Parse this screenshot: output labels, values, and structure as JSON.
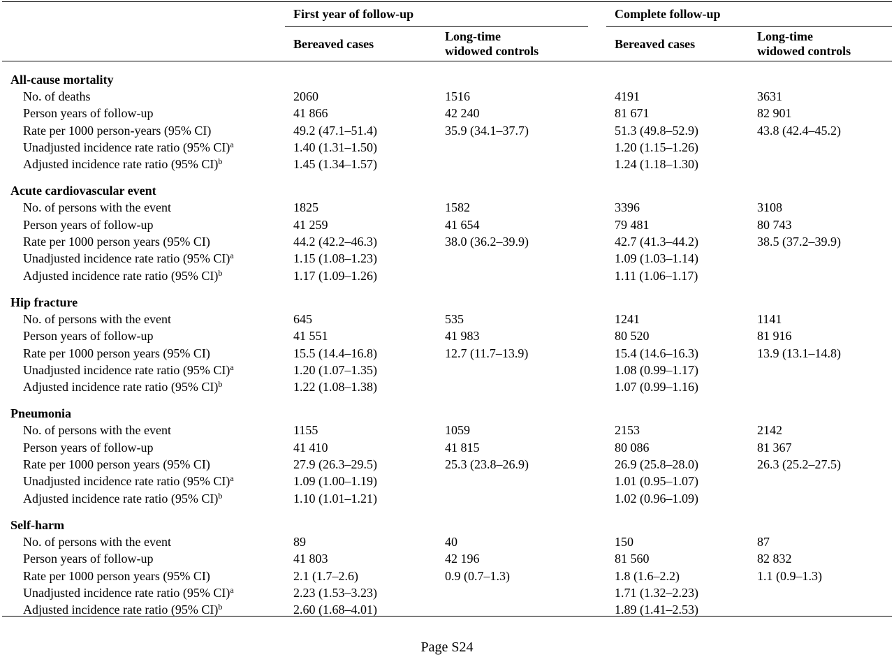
{
  "header": {
    "group_first_year": "First year of follow-up",
    "group_complete": "Complete follow-up",
    "col_bereaved": "Bereaved cases",
    "col_controls_line1": "Long-time",
    "col_controls_line2": "widowed controls"
  },
  "sections": [
    {
      "title": "All-cause mortality",
      "rows": [
        {
          "label": "No. of deaths",
          "sup": "",
          "values": [
            "2060",
            "1516",
            "4191",
            "3631"
          ]
        },
        {
          "label": "Person years of follow-up",
          "sup": "",
          "values": [
            "41 866",
            "42 240",
            "81 671",
            "82 901"
          ]
        },
        {
          "label": "Rate per 1000 person-years (95% CI)",
          "sup": "",
          "values": [
            "49.2 (47.1–51.4)",
            "35.9 (34.1–37.7)",
            "51.3 (49.8–52.9)",
            "43.8 (42.4–45.2)"
          ]
        },
        {
          "label": "Unadjusted incidence rate ratio (95% CI)",
          "sup": "a",
          "values": [
            "1.40 (1.31–1.50)",
            "",
            "1.20 (1.15–1.26)",
            ""
          ]
        },
        {
          "label": "Adjusted incidence rate ratio (95% CI)",
          "sup": "b",
          "values": [
            "1.45 (1.34–1.57)",
            "",
            "1.24 (1.18–1.30)",
            ""
          ]
        }
      ]
    },
    {
      "title": "Acute cardiovascular event",
      "rows": [
        {
          "label": "No. of persons with the event",
          "sup": "",
          "values": [
            "1825",
            "1582",
            "3396",
            "3108"
          ]
        },
        {
          "label": "Person years of follow-up",
          "sup": "",
          "values": [
            "41 259",
            "41 654",
            "79 481",
            "80 743"
          ]
        },
        {
          "label": "Rate per 1000 person years (95% CI)",
          "sup": "",
          "values": [
            "44.2 (42.2–46.3)",
            "38.0 (36.2–39.9)",
            "42.7 (41.3–44.2)",
            "38.5 (37.2–39.9)"
          ]
        },
        {
          "label": "Unadjusted incidence rate ratio (95% CI)",
          "sup": "a",
          "values": [
            "1.15 (1.08–1.23)",
            "",
            "1.09 (1.03–1.14)",
            ""
          ]
        },
        {
          "label": "Adjusted incidence rate ratio (95% CI)",
          "sup": "b",
          "values": [
            "1.17 (1.09–1.26)",
            "",
            "1.11 (1.06–1.17)",
            ""
          ]
        }
      ]
    },
    {
      "title": "Hip fracture",
      "rows": [
        {
          "label": "No. of persons with the event",
          "sup": "",
          "values": [
            "645",
            "535",
            "1241",
            "1141"
          ]
        },
        {
          "label": "Person years of follow-up",
          "sup": "",
          "values": [
            "41 551",
            "41 983",
            "80 520",
            "81 916"
          ]
        },
        {
          "label": "Rate per 1000 person years (95% CI)",
          "sup": "",
          "values": [
            "15.5 (14.4–16.8)",
            "12.7 (11.7–13.9)",
            "15.4 (14.6–16.3)",
            "13.9 (13.1–14.8)"
          ]
        },
        {
          "label": "Unadjusted incidence rate ratio (95% CI)",
          "sup": "a",
          "values": [
            "1.20 (1.07–1.35)",
            "",
            "1.08 (0.99–1.17)",
            ""
          ]
        },
        {
          "label": "Adjusted incidence rate ratio (95% CI)",
          "sup": "b",
          "values": [
            "1.22 (1.08–1.38)",
            "",
            "1.07 (0.99–1.16)",
            ""
          ]
        }
      ]
    },
    {
      "title": "Pneumonia",
      "rows": [
        {
          "label": "No. of persons with the event",
          "sup": "",
          "values": [
            "1155",
            "1059",
            "2153",
            "2142"
          ]
        },
        {
          "label": "Person years of follow-up",
          "sup": "",
          "values": [
            "41 410",
            "41 815",
            "80 086",
            "81 367"
          ]
        },
        {
          "label": "Rate per 1000 person years (95% CI)",
          "sup": "",
          "values": [
            "27.9 (26.3–29.5)",
            "25.3 (23.8–26.9)",
            "26.9 (25.8–28.0)",
            "26.3 (25.2–27.5)"
          ]
        },
        {
          "label": "Unadjusted incidence rate ratio (95% CI)",
          "sup": "a",
          "values": [
            "1.09 (1.00–1.19)",
            "",
            "1.01 (0.95–1.07)",
            ""
          ]
        },
        {
          "label": "Adjusted incidence rate ratio (95% CI)",
          "sup": "b",
          "values": [
            "1.10 (1.01–1.21)",
            "",
            "1.02 (0.96–1.09)",
            ""
          ]
        }
      ]
    },
    {
      "title": "Self-harm",
      "rows": [
        {
          "label": "No. of persons with the event",
          "sup": "",
          "values": [
            "89",
            "40",
            "150",
            "87"
          ]
        },
        {
          "label": "Person years of follow-up",
          "sup": "",
          "values": [
            "41 803",
            "42 196",
            "81 560",
            "82 832"
          ]
        },
        {
          "label": "Rate per 1000 person years (95% CI)",
          "sup": "",
          "values": [
            "2.1 (1.7–2.6)",
            "0.9 (0.7–1.3)",
            "1.8 (1.6–2.2)",
            "1.1 (0.9–1.3)"
          ]
        },
        {
          "label": "Unadjusted incidence rate ratio (95% CI)",
          "sup": "a",
          "values": [
            "2.23 (1.53–3.23)",
            "",
            "1.71 (1.32–2.23)",
            ""
          ]
        },
        {
          "label": "Adjusted incidence rate ratio (95% CI)",
          "sup": "b",
          "values": [
            "2.60 (1.68–4.01)",
            "",
            "1.89 (1.41–2.53)",
            ""
          ]
        }
      ]
    }
  ],
  "footer": {
    "page_label": "Page S24"
  }
}
